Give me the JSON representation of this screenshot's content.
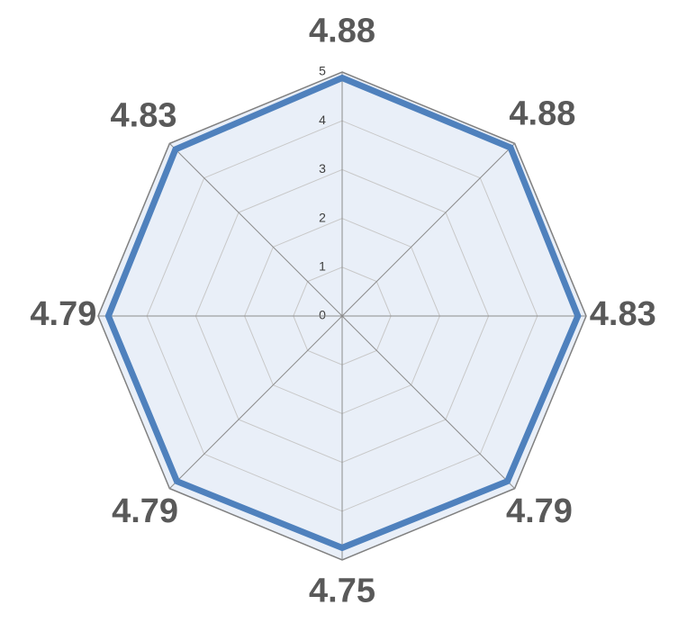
{
  "chart_data": {
    "type": "radar",
    "categories": [
      null,
      null,
      null,
      null,
      null,
      null,
      null,
      null
    ],
    "values": [
      4.88,
      4.88,
      4.83,
      4.79,
      4.75,
      4.79,
      4.79,
      4.83
    ],
    "color": "#4f81bd",
    "ylim": [
      0,
      5
    ],
    "yticks": [
      0,
      1,
      2,
      3,
      4,
      5
    ],
    "grid": true
  }
}
